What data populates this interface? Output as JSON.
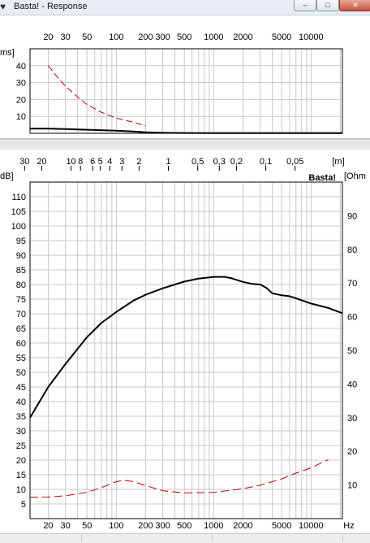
{
  "window": {
    "title": "Basta! - Response",
    "minimize_glyph": "–",
    "maximize_glyph": "□",
    "close_glyph": "✕",
    "icon": "speaker-icon"
  },
  "colors": {
    "grid": "#c8c8c8",
    "axis": "#000000",
    "level_curve": "#000000",
    "impedance_curve": "#c00000",
    "group_delay_curve": "#000000",
    "watermark": "#b4b4b4"
  },
  "chart_data": [
    {
      "type": "line",
      "name": "group-delay",
      "y_unit_label": "ms]",
      "x_ticks": [
        "20",
        "30",
        "50",
        "100",
        "200",
        "300",
        "500",
        "1000",
        "2000",
        "5000",
        "10000"
      ],
      "y_ticks": [
        "40",
        "30",
        "20",
        "10"
      ],
      "xlim": [
        13,
        21000
      ],
      "ylim": [
        0,
        50
      ],
      "x_scale": "log",
      "grid": true,
      "series": [
        {
          "style": "solid",
          "x": [
            13,
            20,
            30,
            50,
            100,
            150,
            200,
            300,
            500,
            1000,
            2000,
            5000,
            10000,
            21000
          ],
          "y": [
            2.8,
            2.8,
            2.5,
            2.1,
            1.6,
            1.1,
            0.6,
            0.3,
            0.2,
            0.1,
            0.1,
            0.1,
            0.1,
            0.1
          ]
        },
        {
          "style": "dashed",
          "x": [
            20,
            25,
            30,
            40,
            50,
            70,
            100,
            150,
            200
          ],
          "y": [
            40,
            33,
            28,
            21.5,
            17,
            12.5,
            9,
            6.5,
            4.5
          ]
        }
      ]
    },
    {
      "type": "line",
      "name": "frequency-response",
      "watermark": "Basta!",
      "left_unit_label": "dB]",
      "right_unit_label": "[Ohm",
      "top_unit_label": "[m]",
      "x_unit_label": "Hz",
      "x_ticks": [
        "20",
        "30",
        "50",
        "100",
        "200",
        "300",
        "500",
        "1000",
        "2000",
        "5000",
        "10000"
      ],
      "wavelength_ticks": [
        {
          "label": "30",
          "m": 30
        },
        {
          "label": "20",
          "m": 20
        },
        {
          "label": "10",
          "m": 10
        },
        {
          "label": "8",
          "m": 8
        },
        {
          "label": "6",
          "m": 6
        },
        {
          "label": "5",
          "m": 5
        },
        {
          "label": "4",
          "m": 4
        },
        {
          "label": "3",
          "m": 3
        },
        {
          "label": "2",
          "m": 2
        },
        {
          "label": "1",
          "m": 1
        },
        {
          "label": "0,5",
          "m": 0.5
        },
        {
          "label": "0,3",
          "m": 0.3
        },
        {
          "label": "0,2",
          "m": 0.2
        },
        {
          "label": "0,1",
          "m": 0.1
        },
        {
          "label": "0,05",
          "m": 0.05
        }
      ],
      "y_ticks": [
        "110",
        "105",
        "100",
        "95",
        "90",
        "85",
        "80",
        "75",
        "70",
        "65",
        "60",
        "55",
        "50",
        "45",
        "40",
        "35",
        "30",
        "25",
        "20",
        "15",
        "10",
        "5"
      ],
      "right_ticks": [
        "90",
        "80",
        "70",
        "60",
        "50",
        "40",
        "30",
        "20",
        "10"
      ],
      "xlim": [
        13,
        21000
      ],
      "ylim": [
        0,
        115
      ],
      "right_ylim": [
        0,
        100
      ],
      "x_scale": "log",
      "grid": true,
      "series": [
        {
          "axis": "left",
          "style": "solid",
          "x": [
            13,
            20,
            30,
            50,
            70,
            100,
            150,
            200,
            300,
            500,
            700,
            1000,
            1300,
            1500,
            2000,
            2500,
            3000,
            3500,
            4000,
            5000,
            6000,
            7000,
            10000,
            15000,
            21000
          ],
          "y": [
            34.5,
            45,
            52.8,
            62,
            66.8,
            70.6,
            74.5,
            76.5,
            78.7,
            81,
            82,
            82.6,
            82.6,
            82.2,
            80.9,
            80.2,
            80,
            78.8,
            77,
            76.3,
            76,
            75.3,
            73.5,
            72,
            70.2
          ]
        },
        {
          "axis": "right",
          "style": "dashed",
          "x": [
            13,
            20,
            30,
            50,
            70,
            100,
            120,
            150,
            200,
            300,
            500,
            1000,
            2000,
            3000,
            5000,
            7000,
            10000,
            15000
          ],
          "y": [
            6.3,
            6.4,
            6.8,
            7.8,
            9.2,
            11,
            11.4,
            11,
            9.8,
            8.3,
            7.6,
            7.8,
            8.9,
            9.9,
            11.8,
            13.5,
            15.1,
            17.5
          ]
        }
      ]
    }
  ],
  "status": {
    "cells": [
      "",
      "",
      ""
    ]
  }
}
